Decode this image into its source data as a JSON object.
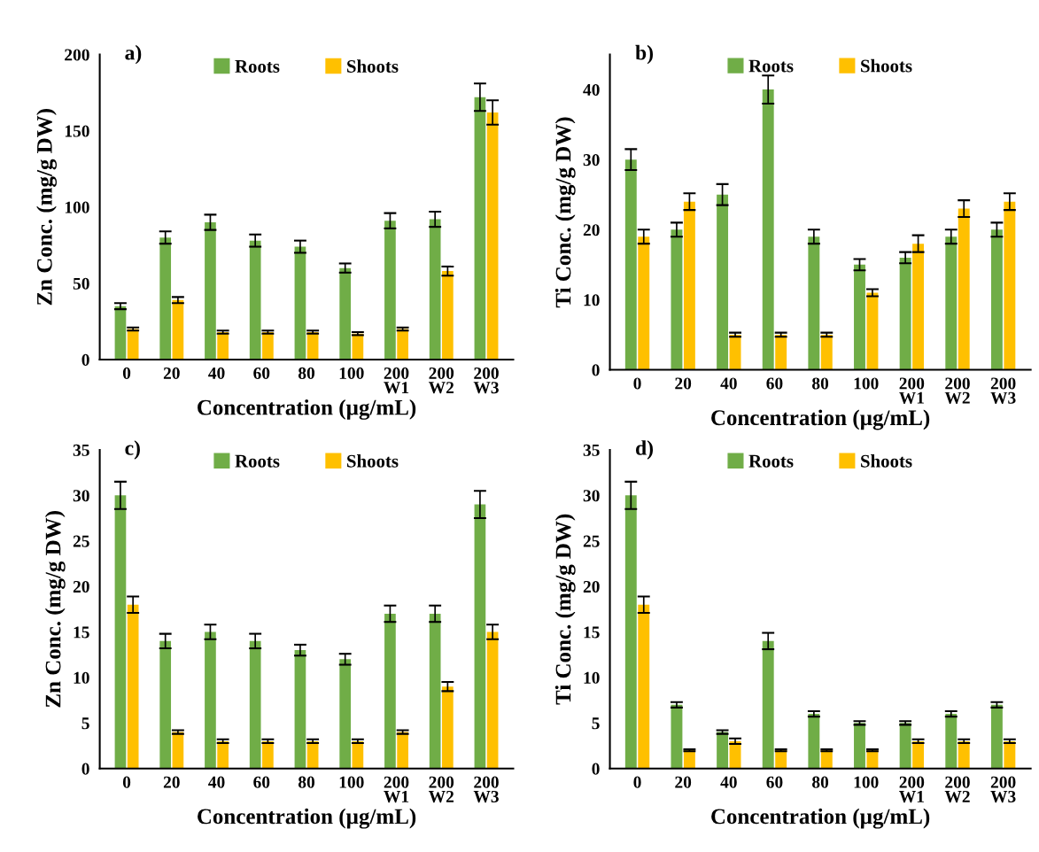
{
  "chart_data": [
    {
      "type": "bar",
      "title": "a)",
      "xlabel": "Concentration (µg/mL)",
      "ylabel": "Zn Conc. (mg/g DW)",
      "categories": [
        "0",
        "20",
        "40",
        "60",
        "80",
        "100",
        "200\nW1",
        "200\nW2",
        "200\nW3"
      ],
      "ylim": [
        0,
        200
      ],
      "yticks": [
        0,
        50,
        100,
        150,
        200
      ],
      "grid": false,
      "legend": "top",
      "series": [
        {
          "name": "Roots",
          "color": "#70ad47",
          "values": [
            35,
            80,
            90,
            78,
            74,
            60,
            91,
            92,
            172
          ],
          "errors": [
            2,
            4,
            5,
            4,
            4,
            3,
            5,
            5,
            9
          ]
        },
        {
          "name": "Shoots",
          "color": "#ffc000",
          "values": [
            20,
            39,
            18,
            18,
            18,
            17,
            20,
            58,
            162
          ],
          "errors": [
            1,
            2,
            1,
            1,
            1,
            1,
            1,
            3,
            8
          ]
        }
      ]
    },
    {
      "type": "bar",
      "title": "b)",
      "xlabel": "Concentration (µg/mL)",
      "ylabel": "Ti Conc. (mg/g DW)",
      "categories": [
        "0",
        "20",
        "40",
        "60",
        "80",
        "100",
        "200\nW1",
        "200\nW2",
        "200\nW3"
      ],
      "ylim": [
        0,
        45
      ],
      "yticks": [
        0,
        10,
        20,
        30,
        40
      ],
      "grid": false,
      "legend": "top",
      "series": [
        {
          "name": "Roots",
          "color": "#70ad47",
          "values": [
            30,
            20,
            25,
            40,
            19,
            15,
            16,
            19,
            20
          ],
          "errors": [
            1.5,
            1,
            1.5,
            2,
            1,
            0.8,
            0.8,
            1,
            1
          ]
        },
        {
          "name": "Shoots",
          "color": "#ffc000",
          "values": [
            19,
            24,
            5,
            5,
            5,
            11,
            18,
            23,
            24
          ],
          "errors": [
            1,
            1.2,
            0.3,
            0.3,
            0.3,
            0.5,
            1.2,
            1.2,
            1.2
          ]
        }
      ]
    },
    {
      "type": "bar",
      "title": "c)",
      "xlabel": "Concentration (µg/mL)",
      "ylabel": "Zn Conc. (mg/g DW)",
      "categories": [
        "0",
        "20",
        "40",
        "60",
        "80",
        "100",
        "200\nW1",
        "200\nW2",
        "200\nW3"
      ],
      "ylim": [
        0,
        35
      ],
      "yticks": [
        0,
        5,
        10,
        15,
        20,
        25,
        30,
        35
      ],
      "grid": false,
      "legend": "top",
      "series": [
        {
          "name": "Roots",
          "color": "#70ad47",
          "values": [
            30,
            14,
            15,
            14,
            13,
            12,
            17,
            17,
            29
          ],
          "errors": [
            1.5,
            0.8,
            0.8,
            0.8,
            0.6,
            0.6,
            0.9,
            0.9,
            1.5
          ]
        },
        {
          "name": "Shoots",
          "color": "#ffc000",
          "values": [
            18,
            4,
            3,
            3,
            3,
            3,
            4,
            9,
            15
          ],
          "errors": [
            0.9,
            0.2,
            0.2,
            0.2,
            0.2,
            0.2,
            0.2,
            0.5,
            0.8
          ]
        }
      ]
    },
    {
      "type": "bar",
      "title": "d)",
      "xlabel": "Concentration (µg/mL)",
      "ylabel": "Ti Conc. (mg/g DW)",
      "categories": [
        "0",
        "20",
        "40",
        "60",
        "80",
        "100",
        "200\nW1",
        "200\nW2",
        "200\nW3"
      ],
      "ylim": [
        0,
        35
      ],
      "yticks": [
        0,
        5,
        10,
        15,
        20,
        25,
        30,
        35
      ],
      "grid": false,
      "legend": "top",
      "series": [
        {
          "name": "Roots",
          "color": "#70ad47",
          "values": [
            30,
            7,
            4,
            14,
            6,
            5,
            5,
            6,
            7
          ],
          "errors": [
            1.5,
            0.3,
            0.2,
            0.9,
            0.3,
            0.2,
            0.2,
            0.3,
            0.3
          ]
        },
        {
          "name": "Shoots",
          "color": "#ffc000",
          "values": [
            18,
            2,
            3,
            2,
            2,
            2,
            3,
            3,
            3
          ],
          "errors": [
            0.9,
            0.1,
            0.3,
            0.1,
            0.1,
            0.1,
            0.2,
            0.2,
            0.2
          ]
        }
      ]
    }
  ]
}
